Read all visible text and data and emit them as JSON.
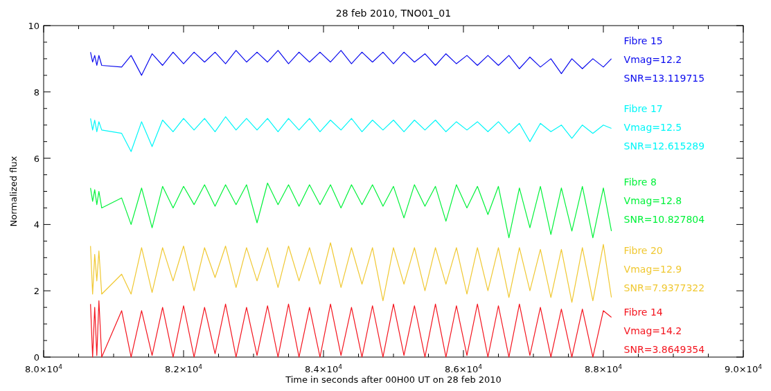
{
  "chart_data": {
    "type": "line",
    "title": "28 feb 2010, TNO01_01",
    "xlabel": "Time in seconds after 00H00 UT on 28 feb 2010",
    "ylabel": "Normalized flux",
    "x": [
      80670,
      80700,
      80730,
      80760,
      80790,
      80830,
      81115,
      81250,
      81400,
      81550,
      81700,
      81850,
      82000,
      82150,
      82300,
      82450,
      82600,
      82750,
      82900,
      83050,
      83200,
      83350,
      83500,
      83650,
      83800,
      83950,
      84100,
      84250,
      84400,
      84550,
      84700,
      84850,
      85000,
      85150,
      85300,
      85450,
      85600,
      85750,
      85900,
      86050,
      86200,
      86350,
      86500,
      86650,
      86800,
      86950,
      87100,
      87250,
      87400,
      87550,
      87700,
      87850,
      88000,
      88115
    ],
    "series": [
      {
        "name": "Fibre 15",
        "color": "#0a0aee",
        "values": [
          9.2,
          8.9,
          9.1,
          8.8,
          9.1,
          8.8,
          8.75,
          9.1,
          8.5,
          9.15,
          8.8,
          9.2,
          8.85,
          9.2,
          8.9,
          9.2,
          8.85,
          9.25,
          8.9,
          9.2,
          8.9,
          9.25,
          8.85,
          9.2,
          8.9,
          9.2,
          8.9,
          9.25,
          8.85,
          9.2,
          8.9,
          9.2,
          8.85,
          9.2,
          8.9,
          9.15,
          8.8,
          9.15,
          8.85,
          9.1,
          8.8,
          9.1,
          8.8,
          9.1,
          8.7,
          9.05,
          8.75,
          9.0,
          8.55,
          9.0,
          8.7,
          9.0,
          8.75,
          9.0
        ]
      },
      {
        "name": "Fibre 17",
        "color": "#00f6f8",
        "values": [
          7.2,
          6.85,
          7.15,
          6.8,
          7.1,
          6.85,
          6.75,
          6.2,
          7.1,
          6.35,
          7.15,
          6.8,
          7.2,
          6.85,
          7.2,
          6.8,
          7.25,
          6.85,
          7.2,
          6.85,
          7.2,
          6.8,
          7.2,
          6.85,
          7.2,
          6.8,
          7.15,
          6.85,
          7.2,
          6.8,
          7.15,
          6.85,
          7.15,
          6.8,
          7.15,
          6.85,
          7.15,
          6.8,
          7.1,
          6.85,
          7.1,
          6.8,
          7.1,
          6.75,
          7.05,
          6.5,
          7.05,
          6.8,
          7.0,
          6.6,
          7.0,
          6.75,
          7.0,
          6.9
        ]
      },
      {
        "name": "Fibre 8",
        "color": "#00f23a",
        "values": [
          5.1,
          4.7,
          5.05,
          4.6,
          5.0,
          4.5,
          4.8,
          4.0,
          5.1,
          3.9,
          5.15,
          4.5,
          5.15,
          4.6,
          5.2,
          4.55,
          5.2,
          4.6,
          5.2,
          4.05,
          5.25,
          4.6,
          5.2,
          4.55,
          5.2,
          4.6,
          5.2,
          4.5,
          5.2,
          4.6,
          5.2,
          4.55,
          5.15,
          4.2,
          5.2,
          4.55,
          5.15,
          4.1,
          5.2,
          4.5,
          5.15,
          4.3,
          5.15,
          3.6,
          5.1,
          3.9,
          5.15,
          3.7,
          5.1,
          3.8,
          5.15,
          3.6,
          5.1,
          3.8
        ]
      },
      {
        "name": "Fibre 20",
        "color": "#f0c832",
        "values": [
          3.35,
          1.9,
          3.1,
          2.3,
          3.2,
          1.9,
          2.5,
          1.9,
          3.3,
          1.95,
          3.3,
          2.3,
          3.35,
          2.0,
          3.3,
          2.4,
          3.35,
          2.1,
          3.3,
          2.3,
          3.3,
          2.1,
          3.35,
          2.3,
          3.3,
          2.2,
          3.45,
          2.1,
          3.3,
          2.2,
          3.3,
          1.7,
          3.3,
          2.2,
          3.3,
          2.0,
          3.3,
          2.2,
          3.3,
          1.9,
          3.3,
          2.0,
          3.3,
          1.8,
          3.3,
          2.0,
          3.25,
          1.8,
          3.25,
          1.65,
          3.3,
          1.7,
          3.4,
          1.8
        ]
      },
      {
        "name": "Fibre 14",
        "color": "#f4141e",
        "values": [
          1.6,
          0,
          1.5,
          0.05,
          1.7,
          0,
          1.4,
          0,
          1.4,
          0.05,
          1.5,
          0,
          1.55,
          0,
          1.5,
          0.1,
          1.6,
          0,
          1.5,
          0.05,
          1.55,
          0,
          1.6,
          0,
          1.5,
          0,
          1.6,
          0.05,
          1.5,
          0,
          1.55,
          0,
          1.6,
          0.05,
          1.55,
          0,
          1.6,
          0,
          1.55,
          0.05,
          1.6,
          0,
          1.55,
          0,
          1.6,
          0.05,
          1.5,
          0,
          1.45,
          0,
          1.45,
          0,
          1.4,
          1.2
        ]
      }
    ],
    "annotations": [
      "Vmag=12.2",
      "SNR=13.119715",
      "Vmag=12.5",
      "SNR=12.615289",
      "Vmag=12.8",
      "SNR=10.827804",
      "Vmag=12.9",
      "SNR=7.9377322",
      "Vmag=14.2",
      "SNR=3.8649354"
    ],
    "xlim": [
      80000,
      90000
    ],
    "xticks": [
      {
        "value": 80000,
        "label": "8.0×10$^{4}$"
      },
      {
        "value": 80500,
        "label": null
      },
      {
        "value": 81000,
        "label": null
      },
      {
        "value": 81500,
        "label": null
      },
      {
        "value": 82000,
        "label": "8.2×10$^{4}$"
      },
      {
        "value": 82500,
        "label": null
      },
      {
        "value": 83000,
        "label": null
      },
      {
        "value": 83500,
        "label": null
      },
      {
        "value": 84000,
        "label": "8.4×10$^{4}$"
      },
      {
        "value": 84500,
        "label": null
      },
      {
        "value": 85000,
        "label": null
      },
      {
        "value": 85500,
        "label": null
      },
      {
        "value": 86000,
        "label": "8.6×10$^{4}$"
      },
      {
        "value": 86500,
        "label": null
      },
      {
        "value": 87000,
        "label": null
      },
      {
        "value": 87500,
        "label": null
      },
      {
        "value": 88000,
        "label": "8.8×10$^{4}$"
      },
      {
        "value": 88500,
        "label": null
      },
      {
        "value": 89000,
        "label": null
      },
      {
        "value": 89500,
        "label": null
      },
      {
        "value": 90000,
        "label": "9.0×10$^{4}$"
      }
    ],
    "ylim": [
      0,
      10
    ],
    "yticks": [
      0,
      {
        "value": 0.5,
        "label": null
      },
      {
        "value": 1,
        "label": null
      },
      {
        "value": 1.5,
        "label": null
      },
      2,
      {
        "value": 2.5,
        "label": null
      },
      {
        "value": 3,
        "label": null
      },
      {
        "value": 3.5,
        "label": null
      },
      4,
      {
        "value": 4.5,
        "label": null
      },
      {
        "value": 5,
        "label": null
      },
      {
        "value": 5.5,
        "label": null
      },
      6,
      {
        "value": 6.5,
        "label": null
      },
      {
        "value": 7,
        "label": null
      },
      {
        "value": 7.5,
        "label": null
      },
      8,
      {
        "value": 8.5,
        "label": null
      },
      {
        "value": 9,
        "label": null
      },
      {
        "value": 9.5,
        "label": null
      },
      10
    ],
    "grid": false,
    "marker": "none",
    "line_style": "solid"
  }
}
